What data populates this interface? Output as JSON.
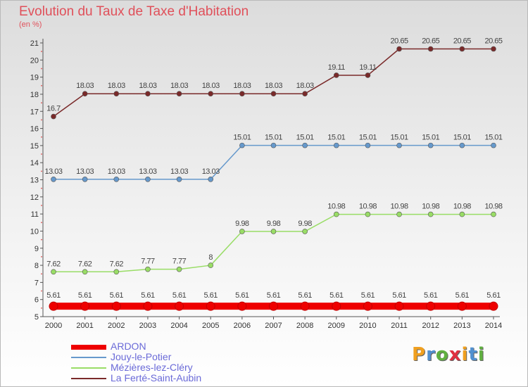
{
  "title": "Evolution du Taux de Taxe d'Habitation",
  "unit_label": "(en %)",
  "logo": {
    "text": "Proxiti",
    "colors": [
      "#f0a020",
      "#5090d0",
      "#60b040",
      "#e03040",
      "#f0a020",
      "#5090d0",
      "#60b040"
    ]
  },
  "chart_data": {
    "type": "line",
    "title": "Evolution du Taux de Taxe d'Habitation",
    "ylabel": "(en %)",
    "xlabel": "",
    "x": [
      2000,
      2001,
      2002,
      2003,
      2004,
      2005,
      2006,
      2007,
      2008,
      2009,
      2010,
      2011,
      2012,
      2013,
      2014
    ],
    "ylim": [
      5,
      21
    ],
    "yticks": [
      5,
      6,
      7,
      8,
      9,
      10,
      11,
      12,
      13,
      14,
      15,
      16,
      17,
      18,
      19,
      20,
      21
    ],
    "grid": false,
    "legend_position": "bottom-left",
    "series": [
      {
        "name": "ARDON",
        "color": "#ee0000",
        "thick": true,
        "values": [
          5.61,
          5.61,
          5.61,
          5.61,
          5.61,
          5.61,
          5.61,
          5.61,
          5.61,
          5.61,
          5.61,
          5.61,
          5.61,
          5.61,
          5.61
        ],
        "labels": [
          "5.61",
          "5.61",
          "5.61",
          "5.61",
          "5.61",
          "5.61",
          "5.61",
          "5.61",
          "5.61",
          "5.61",
          "5.61",
          "5.61",
          "5.61",
          "5.61",
          "5.61"
        ]
      },
      {
        "name": "Jouy-le-Potier",
        "color": "#6699cc",
        "thick": false,
        "values": [
          13.03,
          13.03,
          13.03,
          13.03,
          13.03,
          13.03,
          15.01,
          15.01,
          15.01,
          15.01,
          15.01,
          15.01,
          15.01,
          15.01,
          15.01
        ],
        "labels": [
          "13.03",
          "13.03",
          "13.03",
          "13.03",
          "13.03",
          "13.03",
          "15.01",
          "15.01",
          "15.01",
          "15.01",
          "15.01",
          "15.01",
          "15.01",
          "15.01",
          "15.01"
        ]
      },
      {
        "name": "Mézières-lez-Cléry",
        "color": "#99dd66",
        "thick": false,
        "values": [
          7.62,
          7.62,
          7.62,
          7.77,
          7.77,
          8,
          9.98,
          9.98,
          9.98,
          10.98,
          10.98,
          10.98,
          10.98,
          10.98,
          10.98
        ],
        "labels": [
          "7.62",
          "7.62",
          "7.62",
          "7.77",
          "7.77",
          "8",
          "9.98",
          "9.98",
          "9.98",
          "10.98",
          "10.98",
          "10.98",
          "10.98",
          "10.98",
          "10.98"
        ]
      },
      {
        "name": "La Ferté-Saint-Aubin",
        "color": "#7a2a2a",
        "thick": false,
        "values": [
          16.7,
          18.03,
          18.03,
          18.03,
          18.03,
          18.03,
          18.03,
          18.03,
          18.03,
          19.11,
          19.11,
          20.65,
          20.65,
          20.65,
          20.65
        ],
        "labels": [
          "16.7",
          "18.03",
          "18.03",
          "18.03",
          "18.03",
          "18.03",
          "18.03",
          "18.03",
          "18.03",
          "19.11",
          "19.11",
          "20.65",
          "20.65",
          "20.65",
          "20.65"
        ]
      }
    ]
  }
}
